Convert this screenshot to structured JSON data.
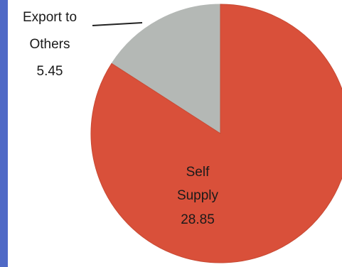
{
  "chart_data": {
    "type": "pie",
    "title": "",
    "slices": [
      {
        "label_lines": [
          "Export to",
          "Others",
          "5.45"
        ],
        "category": "Export to Others",
        "value": 5.45,
        "color": "#b4b8b5"
      },
      {
        "label_lines": [
          "Self",
          "Supply",
          "28.85"
        ],
        "category": "Self Supply",
        "value": 28.85,
        "color": "#d9503a"
      }
    ],
    "start_angle_deg": 0,
    "direction": "counterclockwise",
    "legend": "none",
    "colors": {
      "left_band": "#4f69c6",
      "slice_edge": "#c84a34",
      "leader_line": "#222222"
    }
  }
}
